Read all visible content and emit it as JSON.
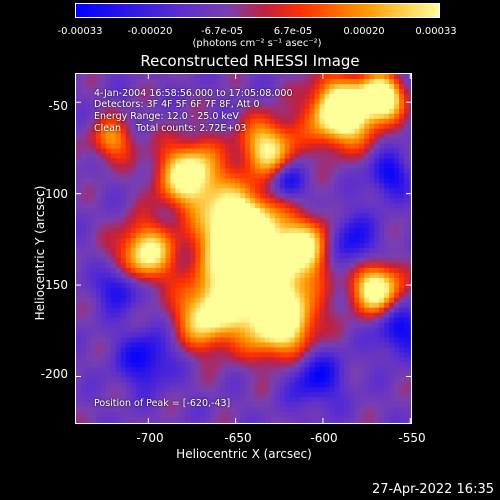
{
  "chart_data": {
    "type": "heatmap",
    "title": "Reconstructed RHESSI Image",
    "xlabel": "Heliocentric X (arcsec)",
    "ylabel": "Heliocentric Y (arcsec)",
    "xlim": [
      -742,
      -549
    ],
    "ylim": [
      -226,
      -34
    ],
    "x_ticks": [
      "-700",
      "-650",
      "-600",
      "-550"
    ],
    "y_ticks": [
      "-50",
      "-100",
      "-150",
      "-200"
    ],
    "x_tick_values": [
      -700,
      -650,
      -600,
      -550
    ],
    "y_tick_values": [
      -50,
      -100,
      -150,
      -200
    ],
    "colorbar": {
      "ticks": [
        "-0.00033",
        "-0.00020",
        "-6.7e-05",
        "6.7e-05",
        "0.00020",
        "0.00033"
      ],
      "tick_values": [
        -0.00033,
        -0.0002,
        -6.7e-05,
        6.7e-05,
        0.0002,
        0.00033
      ],
      "unit": "(photons cm⁻² s⁻¹ asec⁻²)",
      "colors": [
        "#0000ff",
        "#5a2dd0",
        "#7a3fb0",
        "#c02040",
        "#ff3000",
        "#ff9a00",
        "#ffff9a"
      ]
    },
    "annotations": [
      "4-Jan-2004 16:58:56.000 to 17:05:08.000",
      "Detectors: 3F 4F 5F 6F 7F 8F, Att 0",
      "Energy Range: 12.0 - 25.0 keV",
      "Clean     Total counts: 2.72E+03"
    ],
    "peak_label": "Position of Peak = [-620,-43]",
    "peak": [
      -620,
      -43
    ]
  },
  "timestamp": "27-Apr-2022 16:35"
}
